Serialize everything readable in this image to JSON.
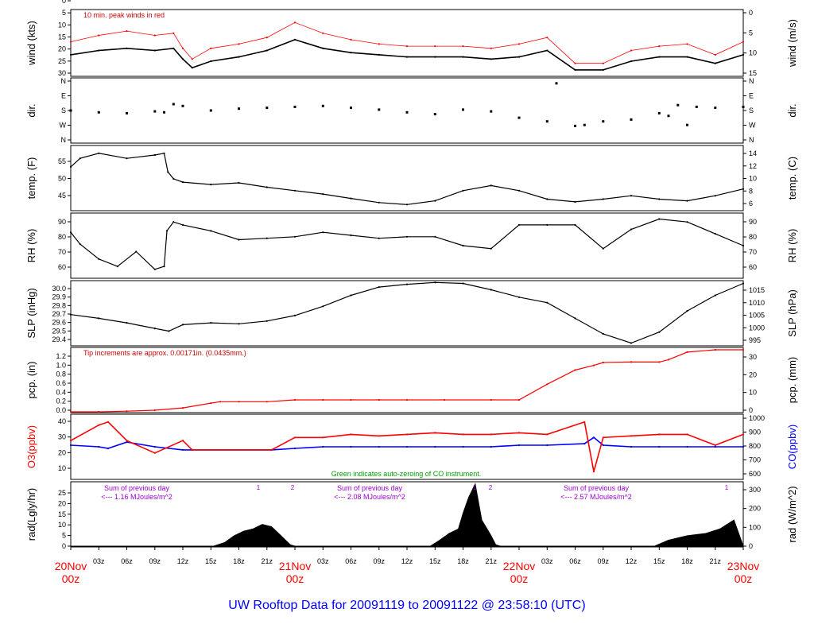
{
  "title": "UW Rooftop Data for 20091119  to  20091122 @ 23:58:10  (UTC)",
  "colors": {
    "axis": "#000000",
    "peak": "#ff0000",
    "pcp": "#ff0000",
    "o3": "#ff0000",
    "co": "#0000ff",
    "co_zero": "#00b000",
    "note_red": "#cc0000",
    "note_green": "#00a000",
    "rad_note": "#9900cc",
    "date_label": "#ff0000",
    "title": "#0000ff"
  },
  "x_axis": {
    "start": "2009-11-20T00:00Z",
    "end": "2009-11-23T00:00Z",
    "hour_ticks": [
      "03z",
      "06z",
      "09z",
      "12z",
      "15z",
      "18z",
      "21z",
      "03z",
      "06z",
      "09z",
      "12z",
      "15z",
      "18z",
      "21z",
      "03z",
      "06z",
      "09z",
      "12z",
      "15z",
      "18z",
      "21z"
    ],
    "day_labels": [
      {
        "date": "20Nov",
        "hour": "00z"
      },
      {
        "date": "21Nov",
        "hour": "00z"
      },
      {
        "date": "22Nov",
        "hour": "00z"
      },
      {
        "date": "23Nov",
        "hour": "00z"
      }
    ]
  },
  "chart_data": [
    {
      "type": "line",
      "panel": "wind",
      "ylabel_left": "wind (kts)",
      "ylabel_right": "wind (m/s)",
      "yticks_left": [
        "0",
        "5",
        "10",
        "15",
        "20",
        "25",
        "30"
      ],
      "yticks_right": [
        "0",
        "5",
        "10",
        "15"
      ],
      "ylim": [
        0,
        31
      ],
      "note": "10 min. peak winds in red",
      "x_hours": [
        0,
        3,
        6,
        9,
        11,
        12,
        13,
        15,
        18,
        21,
        24,
        27,
        30,
        33,
        36,
        39,
        42,
        45,
        48,
        51,
        54,
        57,
        60,
        63,
        66,
        69,
        72
      ],
      "series": [
        {
          "values": [
            10,
            12,
            13,
            12,
            13,
            8,
            4,
            7,
            9,
            12,
            17,
            13,
            11,
            10,
            9,
            9,
            9,
            8,
            9,
            12,
            3,
            3,
            7,
            9,
            9,
            6,
            10
          ]
        },
        {
          "name": "10 min. peak winds",
          "values": [
            16,
            19,
            21,
            19,
            20,
            13,
            8,
            13,
            15,
            18,
            25,
            20,
            17,
            15,
            14,
            14,
            14,
            13,
            15,
            18,
            6,
            6,
            12,
            14,
            15,
            10,
            16
          ]
        }
      ]
    },
    {
      "type": "scatter",
      "panel": "direction",
      "ylabel_left": "dir.",
      "ylabel_right": "dir.",
      "yticks_left": [
        "N",
        "E",
        "S",
        "W",
        "N"
      ],
      "yticks_right": [
        "N",
        "E",
        "S",
        "W",
        "N"
      ],
      "ylim": [
        0,
        360
      ],
      "x_hours": [
        0,
        3,
        6,
        9,
        10,
        11,
        12,
        15,
        18,
        21,
        24,
        27,
        30,
        33,
        36,
        39,
        42,
        45,
        48,
        51,
        52,
        54,
        55,
        57,
        60,
        63,
        64,
        65,
        66,
        67,
        69,
        72
      ],
      "series": [
        {
          "values": [
            180,
            170,
            165,
            175,
            170,
            215,
            205,
            180,
            190,
            195,
            200,
            205,
            195,
            185,
            170,
            160,
            185,
            175,
            140,
            120,
            330,
            95,
            100,
            120,
            130,
            165,
            150,
            210,
            100,
            200,
            195,
            200
          ]
        }
      ]
    },
    {
      "type": "line",
      "panel": "temperature",
      "ylabel_left": "temp. (F)",
      "ylabel_right": "temp. (C)",
      "yticks_left": [
        "45",
        "50",
        "55"
      ],
      "yticks_right": [
        "6",
        "8",
        "10",
        "12",
        "14"
      ],
      "ylim": [
        40.6,
        59.8
      ],
      "x_hours": [
        0,
        1,
        3,
        6,
        9,
        10,
        10.4,
        11,
        12,
        15,
        18,
        21,
        24,
        27,
        30,
        33,
        36,
        39,
        42,
        45,
        48,
        51,
        54,
        57,
        60,
        63,
        66,
        69,
        72
      ],
      "series": [
        {
          "values": [
            53.5,
            56,
            57.5,
            56,
            57,
            57.5,
            52,
            50,
            49,
            48.3,
            48.8,
            47.5,
            46.5,
            45.5,
            44.2,
            43,
            42.4,
            43.5,
            46.5,
            48,
            46.5,
            44,
            43.2,
            44,
            45,
            44,
            43.5,
            45,
            47
          ]
        }
      ]
    },
    {
      "type": "line",
      "panel": "relative_humidity",
      "ylabel_left": "RH (%)",
      "ylabel_right": "RH (%)",
      "yticks_left": [
        "60",
        "70",
        "80",
        "90"
      ],
      "yticks_right": [
        "60",
        "70",
        "80",
        "90"
      ],
      "ylim": [
        52,
        96
      ],
      "x_hours": [
        0,
        1,
        3,
        5,
        7,
        9,
        10,
        10.3,
        11,
        12,
        15,
        18,
        21,
        24,
        27,
        30,
        33,
        36,
        39,
        42,
        45,
        48,
        51,
        54,
        57,
        60,
        63,
        66,
        69,
        72
      ],
      "series": [
        {
          "values": [
            83,
            75,
            65,
            60,
            70,
            58,
            60,
            84,
            90,
            88,
            84,
            78,
            79,
            80,
            83,
            81,
            79,
            80,
            80,
            74,
            72,
            88,
            88,
            88,
            72,
            85,
            92,
            90,
            82,
            74
          ]
        }
      ]
    },
    {
      "type": "line",
      "panel": "sea_level_pressure",
      "ylabel_left": "SLP (inHg)",
      "ylabel_right": "SLP (hPa)",
      "yticks_left": [
        "29.4",
        "29.5",
        "29.6",
        "29.7",
        "29.8",
        "29.9",
        "30.0"
      ],
      "yticks_right": [
        "995",
        "1000",
        "1005",
        "1010",
        "1015"
      ],
      "ylim": [
        29.35,
        30.06
      ],
      "x_hours": [
        0,
        3,
        6,
        9,
        10.5,
        12,
        15,
        18,
        21,
        24,
        27,
        30,
        33,
        36,
        39,
        42,
        45,
        48,
        51,
        54,
        57,
        60,
        63,
        66,
        69,
        72
      ],
      "series": [
        {
          "values": [
            29.69,
            29.65,
            29.6,
            29.54,
            29.51,
            29.58,
            29.6,
            29.59,
            29.62,
            29.68,
            29.78,
            29.9,
            29.99,
            30.02,
            30.04,
            30.03,
            29.96,
            29.88,
            29.82,
            29.65,
            29.48,
            29.38,
            29.5,
            29.73,
            29.9,
            30.03
          ]
        }
      ]
    },
    {
      "type": "line",
      "panel": "precipitation",
      "ylabel_left": "pcp. (in)",
      "ylabel_right": "pcp. (mm)",
      "yticks_left": [
        "0.0",
        "0.2",
        "0.4",
        "0.6",
        "0.8",
        "1.0",
        "1.2"
      ],
      "yticks_right": [
        "0",
        "10",
        "20",
        "30"
      ],
      "ylim": [
        0,
        1.38
      ],
      "note": "Tip increments are approx. 0.00171in. (0.0435mm.)",
      "x_hours": [
        0,
        3,
        6,
        9,
        12,
        15,
        16,
        18,
        21,
        24,
        27,
        30,
        33,
        36,
        40,
        45,
        48,
        51,
        54,
        56,
        57,
        60,
        63,
        64,
        66,
        69,
        72
      ],
      "series": [
        {
          "values": [
            0.01,
            0.01,
            0.03,
            0.05,
            0.1,
            0.2,
            0.23,
            0.23,
            0.23,
            0.27,
            0.27,
            0.27,
            0.27,
            0.27,
            0.27,
            0.27,
            0.27,
            0.6,
            0.9,
            1.0,
            1.06,
            1.07,
            1.07,
            1.12,
            1.28,
            1.33,
            1.33
          ]
        }
      ]
    },
    {
      "type": "line",
      "panel": "ozone_co",
      "ylabel_left": "O3(ppbv)",
      "ylabel_right": "CO(ppbv)",
      "yticks_left": [
        "10",
        "20",
        "30",
        "40"
      ],
      "yticks_right": [
        "600",
        "700",
        "800",
        "900",
        "1000"
      ],
      "ylim": [
        3,
        45
      ],
      "note": "Green indicates auto-zeroing of CO instrument.",
      "x_hours": [
        0,
        3,
        4,
        6,
        9,
        12,
        13,
        21.5,
        24,
        27,
        30,
        33,
        36,
        39,
        42,
        45,
        48,
        51,
        55,
        56,
        57,
        60,
        63,
        66,
        69,
        72
      ],
      "series": [
        {
          "name": "O3",
          "values": [
            28,
            38,
            40,
            28,
            20,
            28,
            22,
            22,
            30,
            30,
            32,
            31,
            32,
            33,
            32,
            32,
            33,
            32,
            40,
            8,
            30,
            31,
            32,
            32,
            25,
            32
          ]
        },
        {
          "name": "CO",
          "values": [
            25,
            24,
            23,
            27,
            24,
            22,
            22,
            22,
            23,
            24,
            24,
            24,
            24,
            24,
            24,
            24,
            25,
            25,
            26,
            30,
            25,
            24,
            24,
            24,
            24,
            24
          ]
        }
      ]
    },
    {
      "type": "area",
      "panel": "radiation",
      "ylabel_left": "rad(Lgly/hr)",
      "ylabel_right": "rad (W/m^2)",
      "yticks_left": [
        "0",
        "5",
        "10",
        "15",
        "20",
        "25"
      ],
      "yticks_right": [
        "0",
        "100",
        "200",
        "300"
      ],
      "ylim": [
        0,
        29
      ],
      "x_hours": [
        0,
        15.3,
        16.5,
        17.5,
        18.5,
        19.5,
        20.5,
        21.5,
        22.5,
        23.5,
        24,
        38.5,
        39.5,
        40.5,
        41.5,
        42,
        42.6,
        43.3,
        44,
        45,
        45.5,
        46,
        62.5,
        64,
        66,
        68,
        69.5,
        71,
        72
      ],
      "series": [
        {
          "values": [
            0,
            0,
            2,
            5,
            7,
            8,
            10,
            9,
            5,
            1,
            0,
            0,
            3,
            6,
            8,
            15,
            22,
            28,
            12,
            5,
            1,
            0,
            0,
            3,
            5,
            6,
            8,
            12,
            0
          ]
        }
      ],
      "annotations": [
        {
          "line1": "Sum of previous day",
          "line2": "<--- 1.16 MJoules/m^2"
        },
        {
          "line1": "Sum of previous day",
          "line2": "<--- 2.08 MJoules/m^2"
        },
        {
          "line1": "Sum of previous day",
          "line2": "<--- 2.57 MJoules/m^2"
        }
      ],
      "markers": [
        "1",
        "2",
        "1",
        "2",
        "1"
      ]
    }
  ]
}
